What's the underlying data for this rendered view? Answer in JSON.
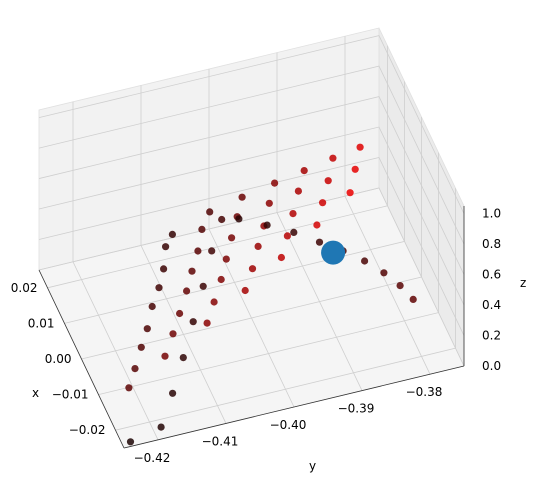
{
  "chart_data": {
    "type": "scatter",
    "projection": "3d",
    "title": "",
    "xlabel": "x",
    "ylabel": "y",
    "zlabel": "z",
    "xlim": [
      -0.025,
      0.025
    ],
    "ylim": [
      -0.425,
      -0.375
    ],
    "zlim": [
      0.0,
      1.05
    ],
    "x_ticks": [
      "−0.02",
      "−0.01",
      "0.00",
      "0.01",
      "0.02"
    ],
    "y_ticks": [
      "−0.42",
      "−0.41",
      "−0.40",
      "−0.39",
      "−0.38"
    ],
    "z_ticks": [
      "0.0",
      "0.2",
      "0.4",
      "0.6",
      "0.8",
      "1.0"
    ],
    "grid": true,
    "point_colormap": "black-to-red by z",
    "point_color_low": "#1a0505",
    "point_color_high": "#ff0000",
    "highlight_point": {
      "x": 0.0,
      "y": -0.388,
      "z": 0.3,
      "color": "#1f77b4"
    },
    "series": [
      {
        "values": [
          [
            -0.0219,
            -0.4235,
            0.3064
          ],
          [
            -0.0163,
            -0.4212,
            0.2767
          ],
          [
            -0.0104,
            -0.4188,
            0.2528
          ],
          [
            -0.0051,
            -0.4166,
            0.2279
          ],
          [
            0.0012,
            -0.4143,
            0.2016
          ],
          [
            0.0064,
            -0.412,
            0.1783
          ],
          [
            0.0117,
            -0.41,
            0.1564
          ],
          [
            0.0181,
            -0.4081,
            0.1319
          ],
          [
            0.0213,
            -0.4063,
            0.1186
          ],
          [
            -0.0203,
            -0.4178,
            0.415
          ],
          [
            -0.0142,
            -0.4151,
            0.3905
          ],
          [
            -0.0085,
            -0.4127,
            0.3648
          ],
          [
            -0.0022,
            -0.4101,
            0.3376
          ],
          [
            0.0034,
            -0.4079,
            0.3129
          ],
          [
            0.0091,
            -0.4056,
            0.2874
          ],
          [
            0.0152,
            -0.4035,
            0.2641
          ],
          [
            0.0198,
            -0.4012,
            0.2463
          ],
          [
            -0.0187,
            -0.4112,
            0.5242
          ],
          [
            -0.0128,
            -0.4087,
            0.4974
          ],
          [
            -0.0066,
            -0.4061,
            0.4728
          ],
          [
            -0.0008,
            -0.4039,
            0.4472
          ],
          [
            0.0053,
            -0.4016,
            0.4195
          ],
          [
            0.0112,
            -0.3993,
            0.3958
          ],
          [
            0.0167,
            -0.3972,
            0.3725
          ],
          [
            -0.0171,
            -0.4052,
            0.6358
          ],
          [
            -0.011,
            -0.4026,
            0.6087
          ],
          [
            -0.0047,
            -0.4002,
            0.5816
          ],
          [
            0.0011,
            -0.3979,
            0.5553
          ],
          [
            0.0075,
            -0.3955,
            0.5288
          ],
          [
            0.0132,
            -0.3933,
            0.5049
          ],
          [
            -0.0152,
            -0.3994,
            0.7454
          ],
          [
            -0.0091,
            -0.397,
            0.7192
          ],
          [
            -0.0028,
            -0.3946,
            0.6925
          ],
          [
            0.0036,
            -0.3922,
            0.6649
          ],
          [
            0.0094,
            -0.3899,
            0.6392
          ],
          [
            -0.0133,
            -0.3937,
            0.8531
          ],
          [
            -0.007,
            -0.3913,
            0.8266
          ],
          [
            -0.0007,
            -0.3889,
            0.7981
          ],
          [
            0.0057,
            -0.3866,
            0.7712
          ],
          [
            -0.0112,
            -0.3883,
            0.9582
          ],
          [
            -0.0046,
            -0.3859,
            0.9318
          ],
          [
            0.0017,
            -0.3836,
            0.9047
          ],
          [
            -0.0236,
            -0.4192,
            0.0421
          ],
          [
            -0.0168,
            -0.4158,
            0.0683
          ],
          [
            -0.0095,
            -0.4124,
            0.0952
          ],
          [
            -0.0021,
            -0.4091,
            0.1225
          ],
          [
            0.0052,
            -0.4058,
            0.1491
          ],
          [
            0.0126,
            -0.4027,
            0.1748
          ],
          [
            0.0191,
            -0.3996,
            0.1962
          ],
          [
            -0.0244,
            -0.4239,
            0.0148
          ],
          [
            0.0226,
            -0.3962,
            0.0816
          ],
          [
            0.0184,
            -0.3931,
            0.1057
          ],
          [
            0.0139,
            -0.3903,
            0.1323
          ],
          [
            0.0088,
            -0.3878,
            0.1608
          ],
          [
            0.0041,
            -0.3855,
            0.1884
          ],
          [
            -0.0009,
            -0.3836,
            0.2183
          ],
          [
            -0.0063,
            -0.3821,
            0.2512
          ],
          [
            -0.0118,
            -0.3811,
            0.2847
          ],
          [
            -0.0175,
            -0.3806,
            0.3218
          ]
        ]
      }
    ]
  }
}
